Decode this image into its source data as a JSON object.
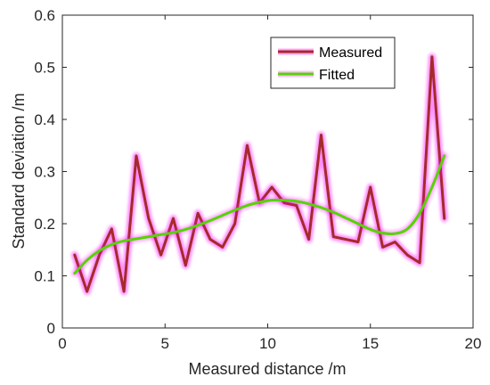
{
  "chart_data": {
    "type": "line",
    "xlabel": "Measured distance /m",
    "ylabel": "Standard deviation /m",
    "xlim": [
      0,
      20
    ],
    "ylim": [
      0,
      0.6
    ],
    "xticks": [
      0,
      5,
      10,
      15,
      20
    ],
    "yticks": [
      0,
      0.1,
      0.2,
      0.3,
      0.4,
      0.5,
      0.6
    ],
    "xtick_labels": [
      "0",
      "5",
      "10",
      "15",
      "20"
    ],
    "ytick_labels": [
      "0",
      "0.1",
      "0.2",
      "0.3",
      "0.4",
      "0.5",
      "0.6"
    ],
    "grid": false,
    "legend_position": "top-right",
    "series": [
      {
        "name": "Measured",
        "color": "#a52a2a",
        "glow_color": "#ff00ff",
        "x": [
          0.6,
          1.2,
          1.8,
          2.4,
          3.0,
          3.6,
          4.2,
          4.8,
          5.4,
          6.0,
          6.6,
          7.2,
          7.8,
          8.4,
          9.0,
          9.6,
          10.2,
          10.8,
          11.4,
          12.0,
          12.6,
          13.2,
          13.8,
          14.4,
          15.0,
          15.6,
          16.2,
          16.8,
          17.4,
          18.0,
          18.6
        ],
        "y": [
          0.14,
          0.07,
          0.14,
          0.19,
          0.07,
          0.33,
          0.21,
          0.14,
          0.21,
          0.12,
          0.22,
          0.17,
          0.155,
          0.2,
          0.35,
          0.24,
          0.27,
          0.24,
          0.235,
          0.17,
          0.37,
          0.175,
          0.17,
          0.165,
          0.27,
          0.155,
          0.165,
          0.14,
          0.125,
          0.52,
          0.21
        ]
      },
      {
        "name": "Fitted",
        "color": "#55d400",
        "glow_color": "#ff00ff",
        "x": [
          0.6,
          1.2,
          1.8,
          2.4,
          3.0,
          3.6,
          4.2,
          4.8,
          5.4,
          6.0,
          6.6,
          7.2,
          7.8,
          8.4,
          9.0,
          9.6,
          10.2,
          10.8,
          11.4,
          12.0,
          12.6,
          13.2,
          13.8,
          14.4,
          15.0,
          15.6,
          16.2,
          16.8,
          17.4,
          18.0,
          18.6
        ],
        "y": [
          0.105,
          0.13,
          0.148,
          0.16,
          0.167,
          0.171,
          0.175,
          0.179,
          0.183,
          0.189,
          0.197,
          0.206,
          0.216,
          0.226,
          0.235,
          0.241,
          0.245,
          0.245,
          0.243,
          0.238,
          0.231,
          0.222,
          0.211,
          0.2,
          0.189,
          0.182,
          0.181,
          0.19,
          0.22,
          0.27,
          0.33
        ]
      }
    ]
  }
}
